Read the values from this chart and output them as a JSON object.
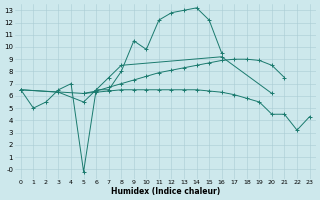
{
  "xlabel": "Humidex (Indice chaleur)",
  "background_color": "#cde8ec",
  "line_color": "#1a7a6e",
  "grid_color": "#aacdd4",
  "xlim": [
    -0.5,
    23.5
  ],
  "ylim": [
    -0.8,
    13.5
  ],
  "xticks": [
    0,
    1,
    2,
    3,
    4,
    5,
    6,
    7,
    8,
    9,
    10,
    11,
    12,
    13,
    14,
    15,
    16,
    17,
    18,
    19,
    20,
    21,
    22,
    23
  ],
  "yticks": [
    0,
    1,
    2,
    3,
    4,
    5,
    6,
    7,
    8,
    9,
    10,
    11,
    12,
    13
  ],
  "ytick_labels": [
    "-0",
    "1",
    "2",
    "3",
    "4",
    "5",
    "6",
    "7",
    "8",
    "9",
    "10",
    "11",
    "12",
    "13"
  ],
  "line1_x": [
    0,
    1,
    2,
    3,
    4,
    5,
    6,
    7,
    8,
    9,
    10,
    11,
    12,
    13,
    14,
    15,
    16
  ],
  "line1_y": [
    6.5,
    5.0,
    5.5,
    6.5,
    7.0,
    -0.2,
    6.5,
    6.5,
    8.0,
    10.5,
    9.8,
    12.2,
    12.8,
    13.0,
    13.2,
    12.2,
    9.5
  ],
  "line2_x": [
    0,
    3,
    5,
    6,
    7,
    8,
    16,
    20
  ],
  "line2_y": [
    6.5,
    6.3,
    5.5,
    6.5,
    7.5,
    8.5,
    9.2,
    6.2
  ],
  "line3_x": [
    0,
    5,
    6,
    7,
    8,
    9,
    10,
    11,
    12,
    13,
    14,
    15,
    16,
    17,
    18,
    19,
    20,
    21
  ],
  "line3_y": [
    6.5,
    6.2,
    6.4,
    6.7,
    7.0,
    7.3,
    7.6,
    7.9,
    8.1,
    8.3,
    8.5,
    8.7,
    8.9,
    9.0,
    9.0,
    8.9,
    8.5,
    7.5
  ],
  "line4_x": [
    5,
    6,
    7,
    8,
    9,
    10,
    11,
    12,
    13,
    14,
    15,
    16,
    17,
    18,
    19,
    20,
    21,
    22,
    23
  ],
  "line4_y": [
    6.2,
    6.3,
    6.4,
    6.5,
    6.5,
    6.5,
    6.5,
    6.5,
    6.5,
    6.5,
    6.4,
    6.3,
    6.1,
    5.8,
    5.5,
    4.5,
    4.5,
    3.2,
    4.3
  ]
}
